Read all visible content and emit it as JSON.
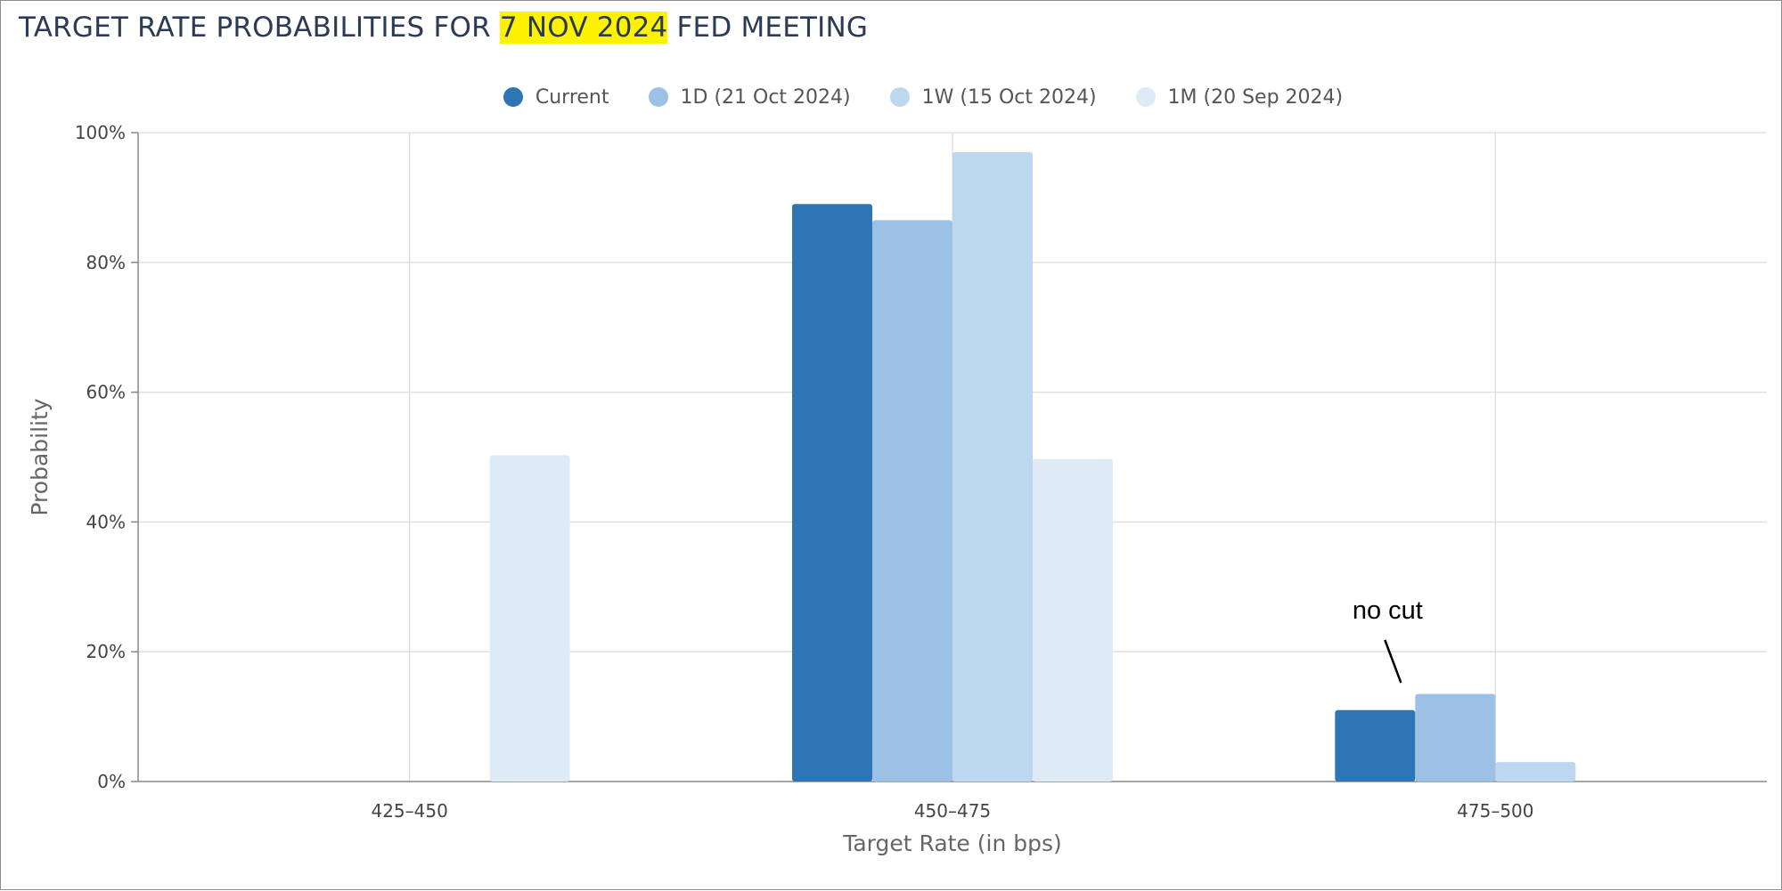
{
  "title": {
    "prefix": "TARGET RATE PROBABILITIES FOR ",
    "highlight": "7 NOV 2024",
    "suffix": " FED MEETING"
  },
  "chart_data": {
    "type": "bar",
    "categories": [
      "425-450",
      "450-475",
      "475-500"
    ],
    "series": [
      {
        "name": "Current",
        "color": "#2e75b6",
        "values": [
          0,
          89.0,
          11.0
        ]
      },
      {
        "name": "1D (21 Oct 2024)",
        "color": "#9dc0e5",
        "values": [
          0,
          86.5,
          13.5
        ]
      },
      {
        "name": "1W (15 Oct 2024)",
        "color": "#bdd7ee",
        "values": [
          0,
          97.0,
          3.0
        ]
      },
      {
        "name": "1M (20 Sep 2024)",
        "color": "#deeaf6",
        "values": [
          50.3,
          49.7,
          0
        ]
      }
    ],
    "xlabel": "Target Rate (in bps)",
    "ylabel": "Probability",
    "ylim": [
      0,
      100
    ],
    "yticks": [
      "0%",
      "20%",
      "40%",
      "60%",
      "80%",
      "100%"
    ],
    "ytick_values": [
      0,
      20,
      40,
      60,
      80,
      100
    ],
    "grid": true,
    "legend_position": "top-center",
    "annotation": {
      "text": "no cut",
      "category": "475-500"
    }
  }
}
